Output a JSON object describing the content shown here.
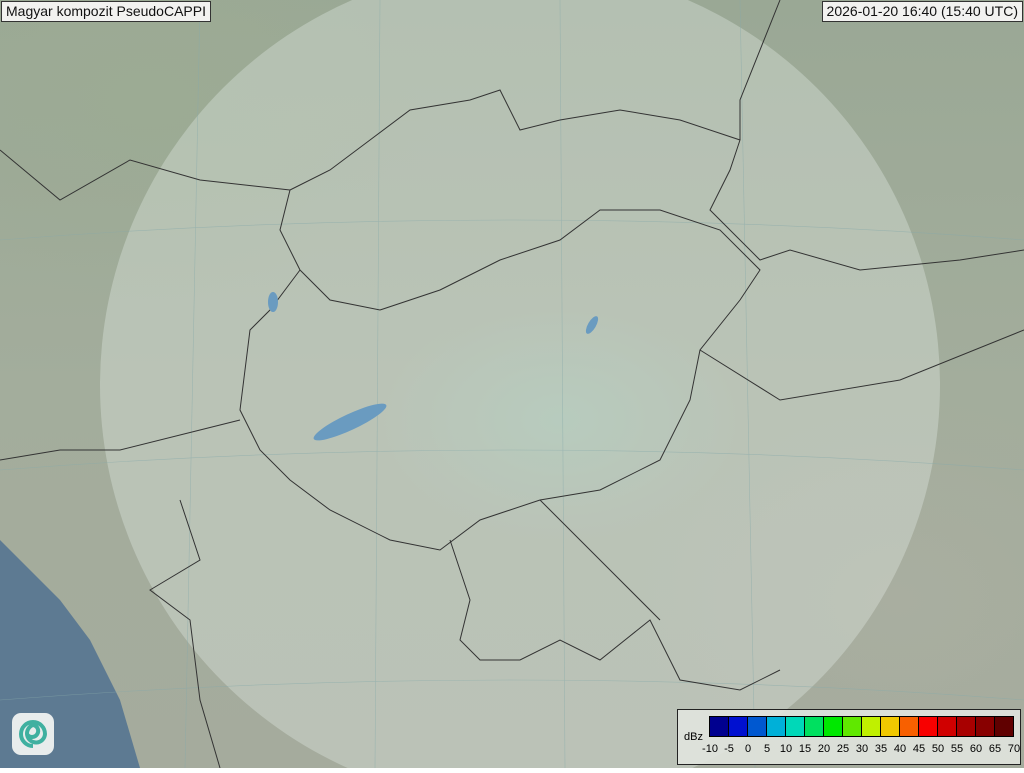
{
  "title": "Magyar kompozit  PseudoCAPPI",
  "timestamp": "2026-01-20 16:40 (15:40 UTC)",
  "legend": {
    "unit": "dBz",
    "ticks": [
      "-10",
      "-5",
      "0",
      "5",
      "10",
      "15",
      "20",
      "25",
      "30",
      "35",
      "40",
      "45",
      "50",
      "55",
      "60",
      "65",
      "70"
    ],
    "colors": [
      "#00008f",
      "#0010d0",
      "#0058d0",
      "#00b0d8",
      "#00d8b8",
      "#00e060",
      "#00e800",
      "#60e800",
      "#c0f000",
      "#f0c800",
      "#f86000",
      "#f80000",
      "#d00000",
      "#a80000",
      "#880000",
      "#600000"
    ]
  },
  "logo": "swirl-logo"
}
